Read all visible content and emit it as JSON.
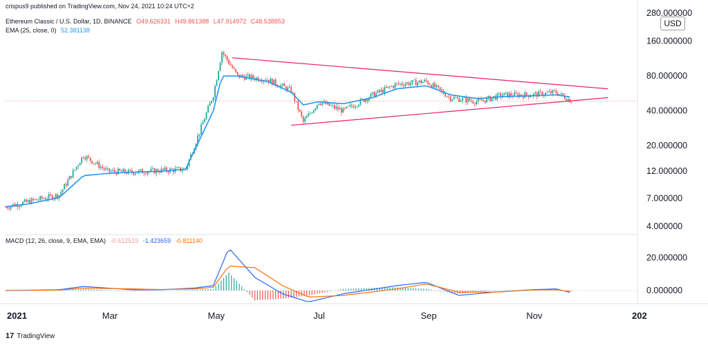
{
  "publisher": "crispus9 published on TradingView.com, Nov 24, 2021 10:24 UTC+2",
  "footer_brand": "TradingView",
  "footer_logo": "17",
  "legend": {
    "symbol": "Ethereum Classic / U.S. Dollar, 1D, BINANCE",
    "ohlc": [
      "O49.626331",
      "H49.861388",
      "L47.914972",
      "C48.538853"
    ],
    "ema_label": "EMA (25, close, 0)",
    "ema_value": "52.381138",
    "macd_label": "MACD (12, 26, close, 9, EMA, EMA)",
    "macd_values": [
      "-0.612519",
      "-1.423659",
      "-0.811140"
    ]
  },
  "currency_label": "USD",
  "colors": {
    "up": "#26a69a",
    "down": "#ef5350",
    "ema": "#2196f3",
    "triangle": "#e91e63",
    "macd": "#2962ff",
    "signal": "#ff6d00",
    "hist_up": "#26a69a",
    "hist_down": "#ef5350"
  },
  "chart_data": [
    {
      "type": "candlestick",
      "scale": "log",
      "x": [
        "2021-01-01",
        "2021-01-15",
        "2021-02-01",
        "2021-02-15",
        "2021-03-01",
        "2021-03-15",
        "2021-04-01",
        "2021-04-15",
        "2021-05-01",
        "2021-05-06",
        "2021-05-15",
        "2021-06-01",
        "2021-06-15",
        "2021-06-22",
        "2021-07-01",
        "2021-07-15",
        "2021-08-01",
        "2021-08-15",
        "2021-09-01",
        "2021-09-15",
        "2021-10-01",
        "2021-10-15",
        "2021-11-01",
        "2021-11-15",
        "2021-11-24"
      ],
      "close": [
        5.9,
        6.6,
        7.5,
        16.5,
        12.0,
        11.8,
        12.2,
        12.5,
        55.0,
        130.0,
        80.0,
        75.0,
        60.0,
        32.0,
        48.0,
        40.0,
        55.0,
        68.0,
        72.0,
        52.0,
        48.0,
        55.0,
        55.0,
        58.0,
        48.54
      ],
      "ema": [
        5.9,
        6.3,
        7.1,
        11.0,
        11.5,
        11.8,
        12.0,
        12.5,
        40.0,
        80.0,
        80.0,
        72.0,
        58.0,
        45.0,
        48.0,
        46.0,
        52.0,
        62.0,
        66.0,
        55.0,
        51.0,
        53.0,
        54.0,
        55.0,
        52.38
      ],
      "y_ticks": [
        "4.000000",
        "7.000000",
        "12.000000",
        "20.000000",
        "40.000000",
        "80.000000",
        "160.000000",
        "280.000000"
      ],
      "x_ticks": [
        "2021",
        "Mar",
        "May",
        "Jul",
        "Sep",
        "Nov",
        "202"
      ],
      "annotations": [
        "symmetrical triangle"
      ],
      "last_value": "48.538853"
    },
    {
      "type": "macd",
      "x": [
        "2021-01-01",
        "2021-02-01",
        "2021-02-15",
        "2021-03-15",
        "2021-04-01",
        "2021-04-20",
        "2021-05-01",
        "2021-05-10",
        "2021-05-25",
        "2021-06-10",
        "2021-06-25",
        "2021-07-15",
        "2021-08-15",
        "2021-09-01",
        "2021-09-20",
        "2021-10-10",
        "2021-11-01",
        "2021-11-15",
        "2021-11-24"
      ],
      "macd": [
        0,
        0.5,
        2.5,
        0.5,
        0.5,
        1.5,
        3,
        26,
        8,
        -2,
        -7,
        -2,
        3,
        5,
        -3,
        -1,
        0.5,
        1,
        -1.42
      ],
      "signal": [
        0,
        0.3,
        1.5,
        1.0,
        0.6,
        1.0,
        2,
        15,
        14,
        3,
        -4,
        -3,
        1,
        4,
        -1,
        -1,
        0.3,
        0.5,
        -0.81
      ],
      "histogram": [
        0,
        0.2,
        1.0,
        -0.5,
        -0.1,
        0.5,
        1,
        11,
        -6,
        -5,
        -3,
        1,
        2,
        1,
        -2,
        0,
        0.2,
        0.5,
        -0.61
      ],
      "y_ticks": [
        "0.000000",
        "20.000000"
      ]
    }
  ]
}
